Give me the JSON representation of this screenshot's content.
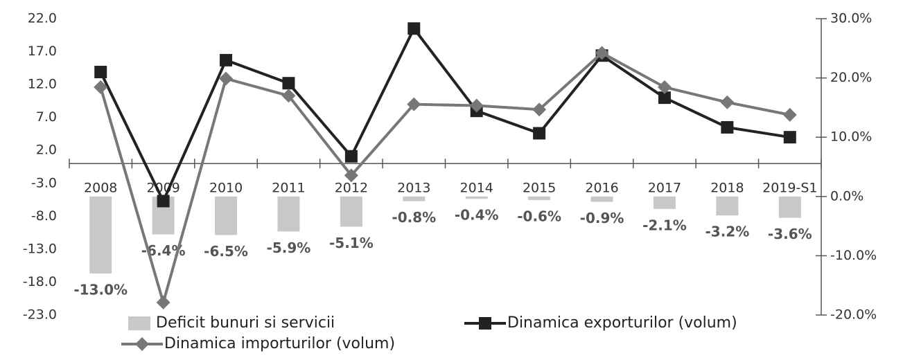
{
  "chart_data": {
    "type": "bar-line",
    "categories": [
      "2008",
      "2009",
      "2010",
      "2011",
      "2012",
      "2013",
      "2014",
      "2015",
      "2016",
      "2017",
      "2018",
      "2019-S1"
    ],
    "series": [
      {
        "name": "Deficit bunuri si servicii",
        "type": "bar",
        "axis": "y2",
        "color": "#c8c8c8",
        "values": [
          -13.0,
          -6.4,
          -6.5,
          -5.9,
          -5.1,
          -0.8,
          -0.4,
          -0.6,
          -0.9,
          -2.1,
          -3.2,
          -3.6
        ],
        "value_labels": [
          "-13.0%",
          "-6.4%",
          "-6.5%",
          "-5.9%",
          "-5.1%",
          "-0.8%",
          "-0.4%",
          "-0.6%",
          "-0.9%",
          "-2.1%",
          "-3.2%",
          "-3.6%"
        ]
      },
      {
        "name": "Dinamica exporturilor (volum)",
        "type": "line",
        "axis": "y",
        "color": "#222222",
        "marker": "square",
        "values": [
          13.9,
          -5.7,
          15.7,
          12.2,
          1.1,
          20.5,
          8.0,
          4.6,
          16.4,
          10.0,
          5.5,
          4.0
        ]
      },
      {
        "name": "Dinamica importurilor (volum)",
        "type": "line",
        "axis": "y",
        "color": "#777777",
        "marker": "diamond",
        "values": [
          11.6,
          -21.1,
          12.9,
          10.3,
          -1.8,
          9.0,
          8.8,
          8.2,
          16.8,
          11.6,
          9.3,
          7.4
        ]
      }
    ],
    "ylim": [
      -23,
      22
    ],
    "yticks": [
      {
        "value": 22,
        "label": "22.0"
      },
      {
        "value": 17,
        "label": "17.0"
      },
      {
        "value": 12,
        "label": "12.0"
      },
      {
        "value": 7,
        "label": "7.0"
      },
      {
        "value": 2,
        "label": "2.0"
      },
      {
        "value": -3,
        "label": "-3.0"
      },
      {
        "value": -8,
        "label": "-8.0"
      },
      {
        "value": -13,
        "label": "-13.0"
      },
      {
        "value": -18,
        "label": "-18.0"
      },
      {
        "value": -23,
        "label": "-23.0"
      }
    ],
    "y2lim": [
      -20,
      30
    ],
    "y2ticks": [
      {
        "value": 30,
        "label": "30.0%"
      },
      {
        "value": 20,
        "label": "20.0%"
      },
      {
        "value": 10,
        "label": "10.0%"
      },
      {
        "value": 0,
        "label": "0.0%"
      },
      {
        "value": -10,
        "label": "-10.0%"
      },
      {
        "value": -20,
        "label": "-20.0%"
      }
    ],
    "legend": "bottom"
  }
}
